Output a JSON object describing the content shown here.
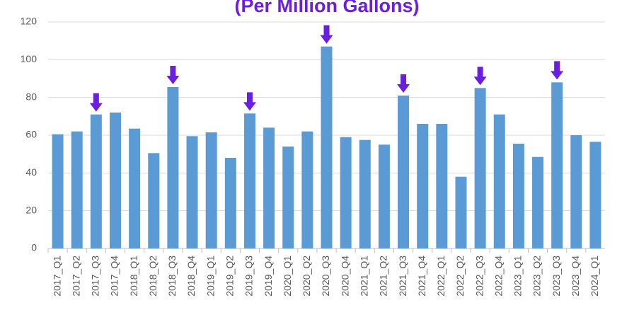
{
  "chart_data": {
    "type": "bar",
    "title": "(Per Million Gallons)",
    "categories": [
      "2017_Q1",
      "2017_Q2",
      "2017_Q3",
      "2017_Q4",
      "2018_Q1",
      "2018_Q2",
      "2018_Q3",
      "2018_Q4",
      "2019_Q1",
      "2019_Q2",
      "2019_Q3",
      "2019_Q4",
      "2020_Q1",
      "2020_Q2",
      "2020_Q3",
      "2020_Q4",
      "2021_Q1",
      "2021_Q2",
      "2021_Q3",
      "2021_Q4",
      "2022_Q1",
      "2022_Q2",
      "2022_Q3",
      "2022_Q4",
      "2023_Q1",
      "2023_Q2",
      "2023_Q3",
      "2023_Q4",
      "2024_Q1"
    ],
    "values": [
      60.5,
      62,
      71,
      72,
      63.5,
      50.5,
      85.5,
      59.5,
      61.5,
      48,
      71.5,
      64,
      54,
      62,
      107,
      59,
      57.5,
      55,
      81,
      66,
      66,
      38,
      85,
      71,
      55.5,
      48.5,
      88,
      60,
      56.5
    ],
    "color": "#5b9bd5",
    "ylim": [
      0,
      120
    ],
    "yticks": [
      0,
      20,
      40,
      60,
      80,
      100,
      120
    ],
    "grid": true,
    "markers": {
      "color": "#6a1fe0",
      "categories": [
        "2017_Q3",
        "2018_Q3",
        "2019_Q3",
        "2020_Q3",
        "2021_Q3",
        "2022_Q3",
        "2023_Q3"
      ]
    }
  }
}
